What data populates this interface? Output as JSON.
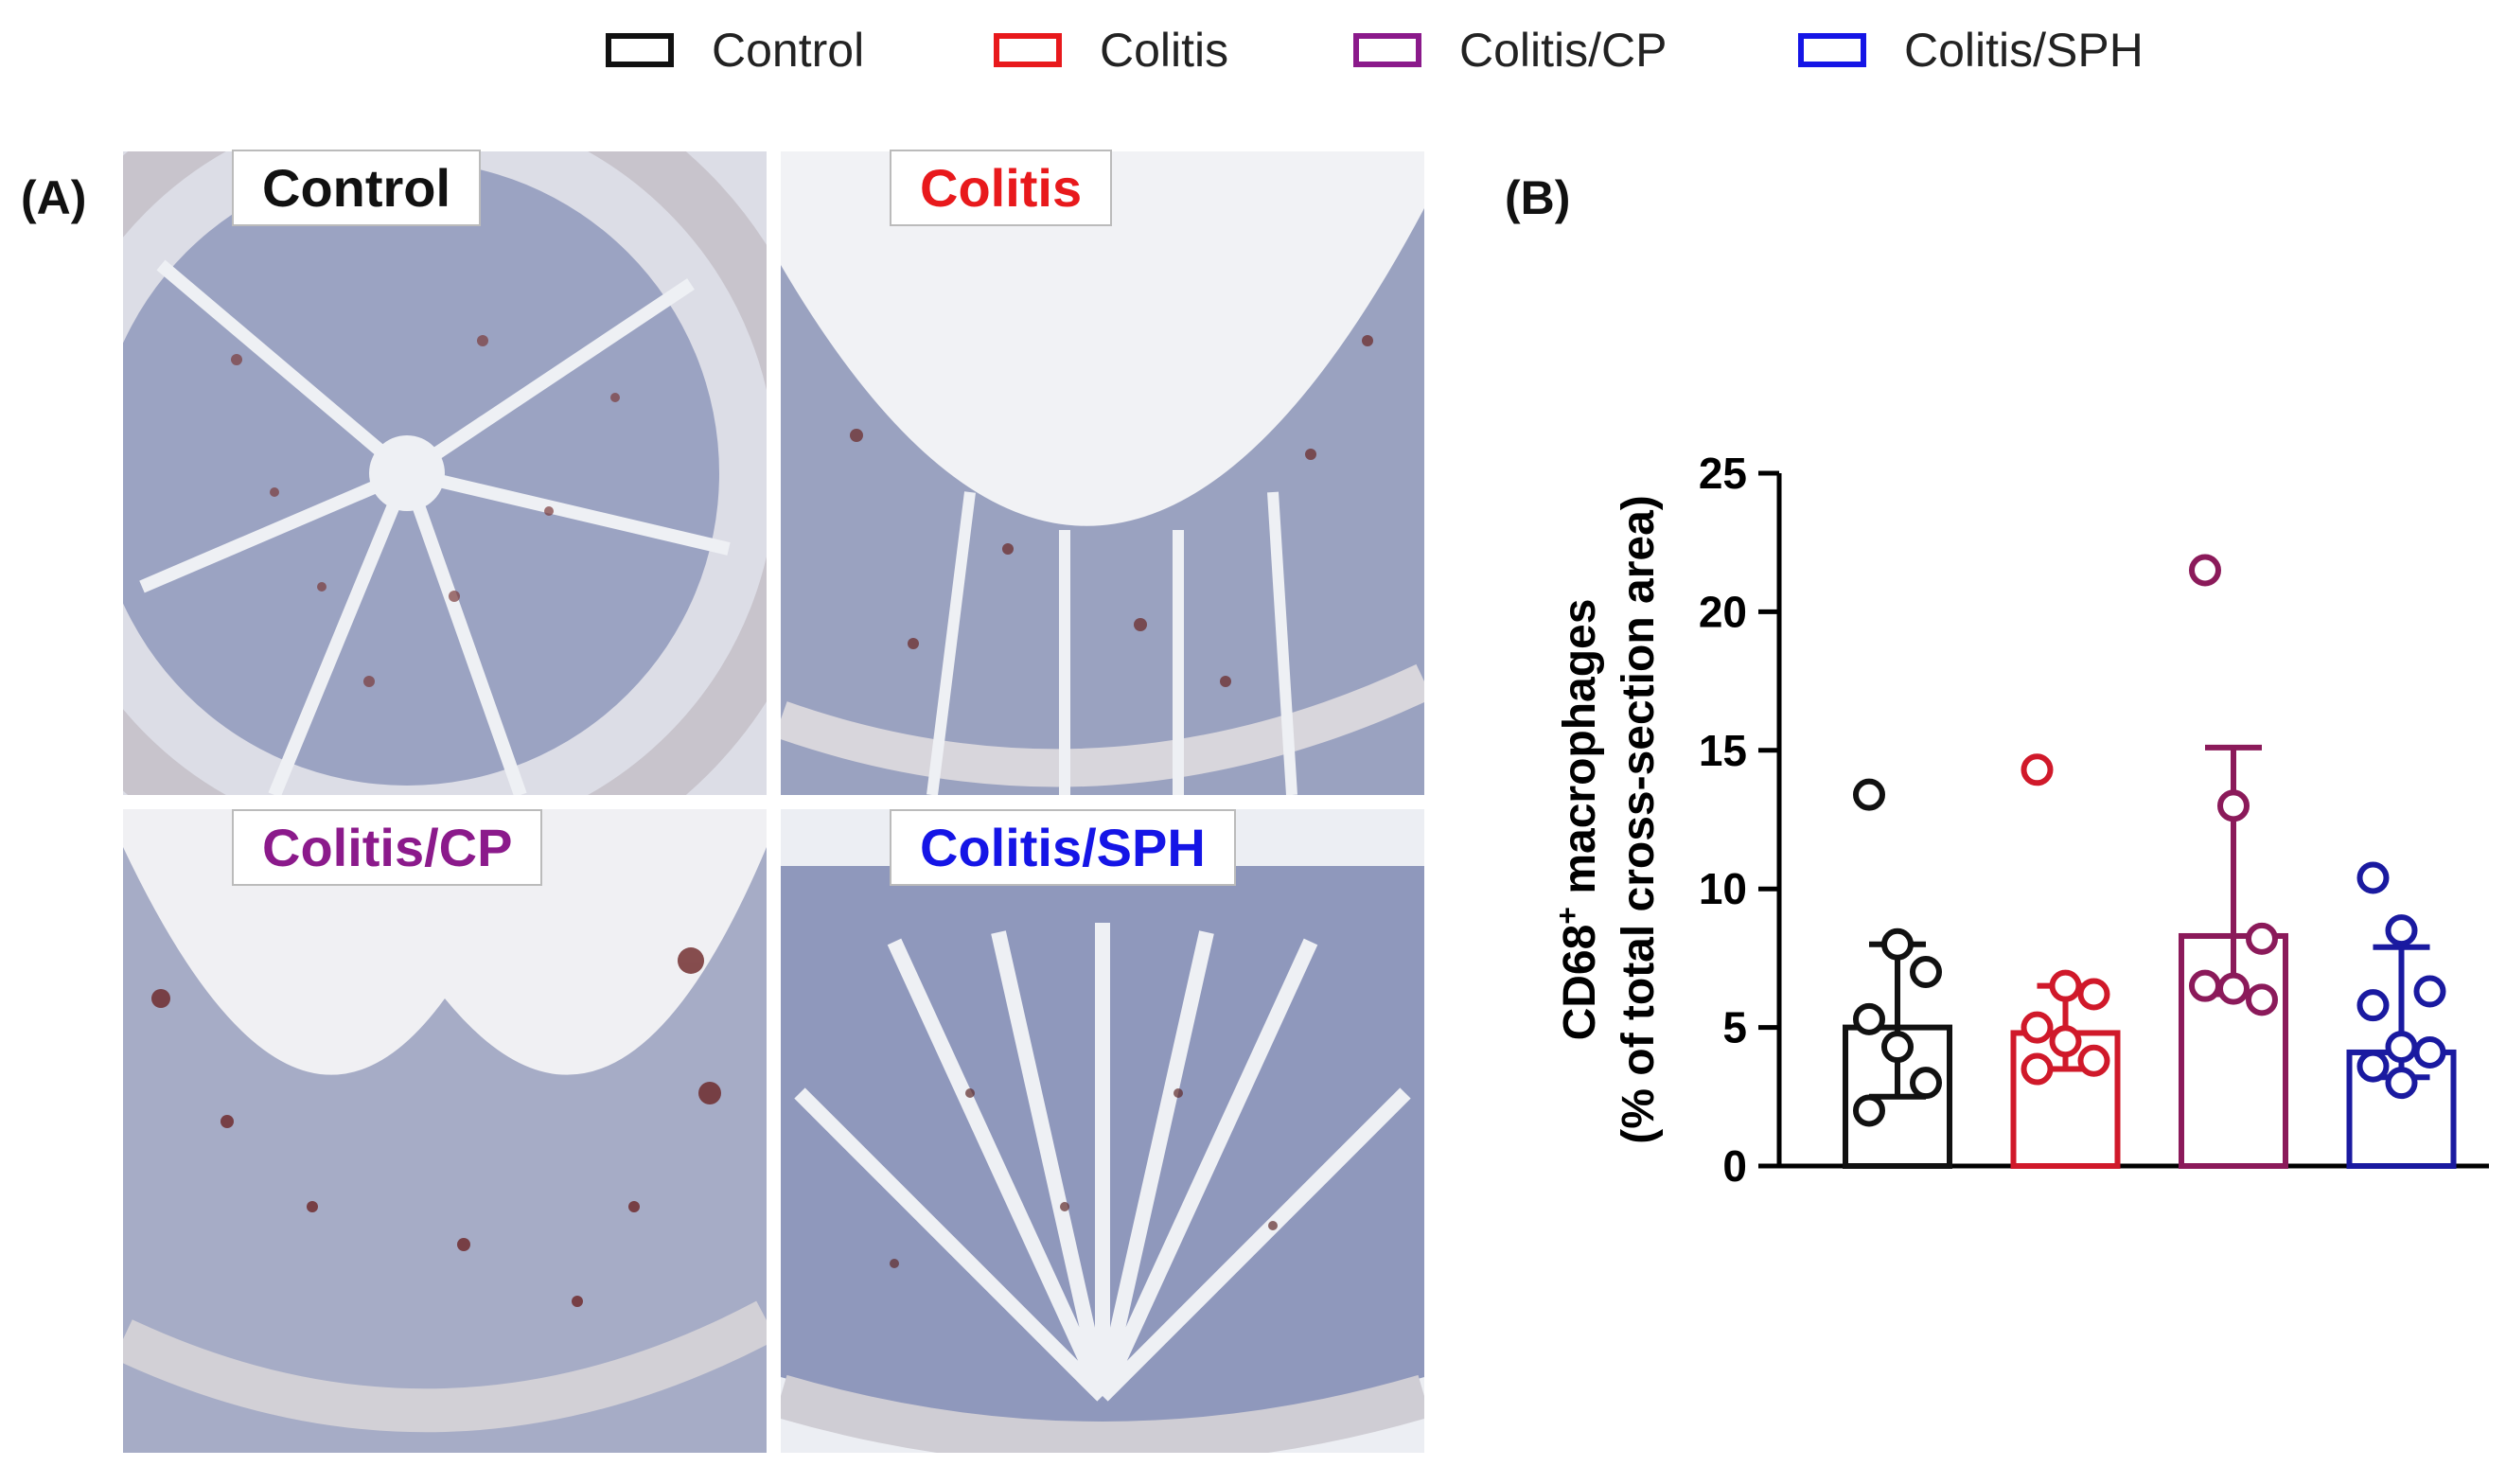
{
  "legend": [
    {
      "label": "Control",
      "color": "#111111"
    },
    {
      "label": "Colitis",
      "color": "#e8191c"
    },
    {
      "label": "Colitis/CP",
      "color": "#8b1a8b"
    },
    {
      "label": "Colitis/SPH",
      "color": "#1515e6"
    }
  ],
  "panels": {
    "a_label": "(A)",
    "b_label": "(B)"
  },
  "micrographs": [
    {
      "label": "Control",
      "label_color": "#111111",
      "description_icon": "histology-micrograph"
    },
    {
      "label": "Colitis",
      "label_color": "#e8191c",
      "description_icon": "histology-micrograph"
    },
    {
      "label": "Colitis/CP",
      "label_color": "#8b1a8b",
      "description_icon": "histology-micrograph"
    },
    {
      "label": "Colitis/SPH",
      "label_color": "#1515e6",
      "description_icon": "histology-micrograph"
    }
  ],
  "chart_data": {
    "type": "bar",
    "title": "",
    "xlabel": "",
    "ylabel_line1": "CD68",
    "ylabel_sup": "+",
    "ylabel_line1_rest": " macrophages",
    "ylabel_line2": "(% of total cross-section area)",
    "ylim": [
      0,
      25
    ],
    "yticks": [
      0,
      5,
      10,
      15,
      20,
      25
    ],
    "grid": false,
    "categories": [
      "Control",
      "Colitis",
      "Colitis/CP",
      "Colitis/SPH"
    ],
    "colors": [
      "#111111",
      "#d0192a",
      "#8b1a5a",
      "#1a1aa0"
    ],
    "values": [
      5.0,
      4.8,
      8.3,
      4.1
    ],
    "error_upper": [
      8.0,
      6.5,
      15.1,
      7.9
    ],
    "error_lower": [
      2.5,
      3.5,
      6.2,
      3.2
    ],
    "points": [
      [
        13.4,
        8.0,
        7.0,
        5.3,
        4.3,
        3.0,
        2.0
      ],
      [
        14.3,
        6.5,
        6.2,
        5.0,
        4.5,
        3.8,
        3.5
      ],
      [
        21.5,
        13.0,
        8.2,
        6.5,
        6.4,
        6.0
      ],
      [
        10.4,
        8.5,
        6.3,
        5.8,
        4.3,
        4.1,
        3.6,
        3.0
      ]
    ]
  }
}
